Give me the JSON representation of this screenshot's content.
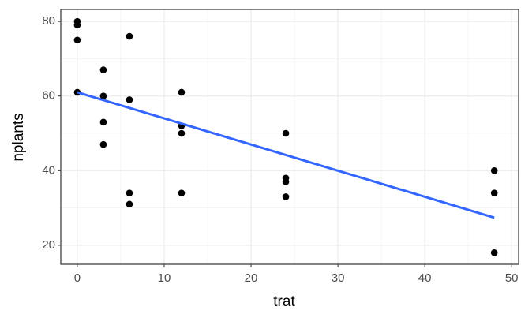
{
  "chart_data": {
    "type": "scatter",
    "x_label": "trat",
    "y_label": "nplants",
    "x": [
      0,
      0,
      0,
      0,
      3,
      3,
      3,
      3,
      6,
      6,
      6,
      6,
      12,
      12,
      12,
      12,
      24,
      24,
      24,
      24,
      48,
      48,
      48
    ],
    "values": [
      80,
      79,
      75,
      61,
      67,
      60,
      53,
      47,
      76,
      59,
      34,
      31,
      61,
      52,
      50,
      34,
      50,
      38,
      37,
      33,
      40,
      34,
      18
    ],
    "color": "#000000",
    "fit": {
      "x": [
        0,
        48
      ],
      "values": [
        61,
        27.4
      ],
      "color": "#3366ff"
    },
    "xlim": [
      -1.9,
      50.8
    ],
    "ylim": [
      14.9,
      83.2
    ],
    "xticks": [
      0,
      10,
      20,
      30,
      40,
      50
    ],
    "yticks": [
      20,
      40,
      60,
      80
    ],
    "minor_xticks": [
      5,
      15,
      25,
      35,
      45
    ],
    "minor_yticks": [
      30,
      50,
      70
    ],
    "grid": true
  }
}
